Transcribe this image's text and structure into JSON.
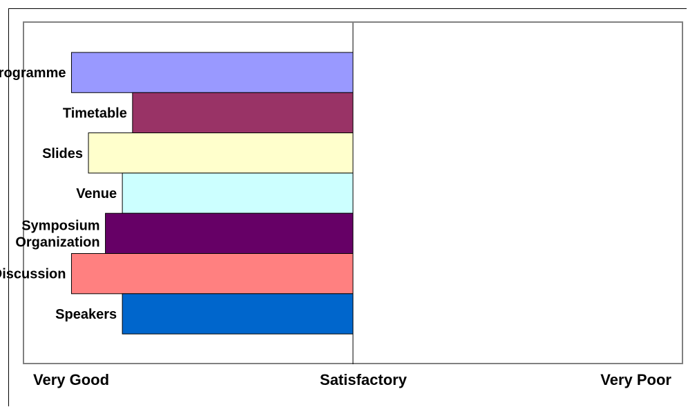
{
  "chart_data": {
    "type": "bar",
    "orientation": "horizontal",
    "categories": [
      "Programme",
      "Timetable",
      "Slides",
      "Venue",
      "Symposium Organization",
      "Discussion",
      "Speakers"
    ],
    "category_label_lines": [
      [
        "Programme"
      ],
      [
        "Timetable"
      ],
      [
        "Slides"
      ],
      [
        "Venue"
      ],
      [
        "Symposium",
        "Organization"
      ],
      [
        "Discussion"
      ],
      [
        "Speakers"
      ]
    ],
    "values": [
      -0.83,
      -0.65,
      -0.78,
      -0.68,
      -0.73,
      -0.83,
      -0.68
    ],
    "colors": [
      "#9999FF",
      "#993366",
      "#FFFFCC",
      "#CCFFFF",
      "#660066",
      "#FF8080",
      "#0066CC"
    ],
    "xlim": [
      -1.0,
      1.0
    ],
    "tick_labels": {
      "left": "Very Good",
      "center": "Satisfactory",
      "right": "Very Poor"
    },
    "grid": false,
    "legend": "none"
  }
}
